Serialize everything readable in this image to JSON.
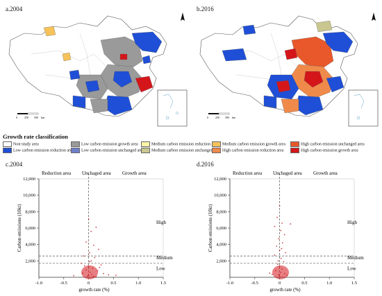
{
  "panels": {
    "a": "a.2004",
    "b": "b.2016",
    "c": "c.2004",
    "d": "d.2016"
  },
  "map": {
    "north_label": "N",
    "scale_a": [
      "0",
      "250",
      "500",
      "km"
    ],
    "scale_b": [
      "0",
      "250",
      "500",
      "km"
    ]
  },
  "legend": {
    "title": "Growth rate classification",
    "items": [
      {
        "label": "Non-study area",
        "color": "#ffffff"
      },
      {
        "label": "Low carbon emission reduction area",
        "color": "#1f4fd6"
      },
      {
        "label": "Low carbon emission growth area",
        "color": "#9a9a9a"
      },
      {
        "label": "Low carbon emission unchanged area",
        "color": "#6f7fc9"
      },
      {
        "label": "Medium carbon emission reduction area",
        "color": "#fbf3a8"
      },
      {
        "label": "Medium carbon emission unchanged area",
        "color": "#c9c78f"
      },
      {
        "label": "Medium carbon emission growth area",
        "color": "#f6c35a"
      },
      {
        "label": "High carbon emission reduction area",
        "color": "#f08a4b"
      },
      {
        "label": "High carbon emission unchanged area",
        "color": "#e8582a"
      },
      {
        "label": "High carbon emission growth area",
        "color": "#d4161b"
      }
    ]
  },
  "chart_data": [
    {
      "type": "scatter",
      "title": "c.2004",
      "xlabel": "growth rate (%)",
      "ylabel": "Carbon emissions (10kt)",
      "xlim": [
        -1.0,
        1.5
      ],
      "ylim": [
        0,
        12000
      ],
      "xticks": [
        "-1.0",
        "-0.5",
        "0",
        "0.5",
        "1.0",
        "1.5"
      ],
      "yticks": [
        "2,000",
        "4,000",
        "6,000",
        "8,000",
        "10,000",
        "12,000"
      ],
      "zones": [
        "Reduction area",
        "Unchaged area",
        "Growth area"
      ],
      "levels": [
        "High",
        "Medium",
        "Low"
      ],
      "thresholds_y": [
        1700,
        2600
      ],
      "threshold_x": [
        0
      ],
      "points": [
        [
          0.0,
          7100
        ],
        [
          0.15,
          6100
        ],
        [
          0.05,
          5600
        ],
        [
          -0.05,
          4300
        ],
        [
          0.1,
          3900
        ],
        [
          0.2,
          3400
        ],
        [
          0.02,
          3000
        ],
        [
          -0.1,
          2600
        ],
        [
          0.12,
          2400
        ],
        [
          0.05,
          2000
        ],
        [
          -0.15,
          1700
        ],
        [
          0.25,
          1500
        ],
        [
          0.0,
          1300
        ],
        [
          0.08,
          1100
        ],
        [
          -0.05,
          900
        ],
        [
          0.18,
          800
        ],
        [
          0.03,
          600
        ],
        [
          -0.12,
          500
        ],
        [
          0.3,
          450
        ],
        [
          0.06,
          350
        ],
        [
          0.0,
          250
        ],
        [
          -0.02,
          150
        ],
        [
          0.1,
          120
        ],
        [
          0.15,
          80
        ],
        [
          0.4,
          300
        ],
        [
          0.55,
          250
        ],
        [
          -0.3,
          200
        ],
        [
          0.02,
          1900
        ],
        [
          0.22,
          1200
        ],
        [
          -0.08,
          1400
        ]
      ]
    },
    {
      "type": "scatter",
      "title": "d.2016",
      "xlabel": "growth rate (%)",
      "ylabel": "Carbon emissions (10kt)",
      "xlim": [
        -1.0,
        1.5
      ],
      "ylim": [
        0,
        12000
      ],
      "xticks": [
        "-1.0",
        "-0.5",
        "0",
        "0.5",
        "1.0",
        "1.5"
      ],
      "yticks": [
        "2,000",
        "4,000",
        "6,000",
        "8,000",
        "10,000",
        "12,000"
      ],
      "zones": [
        "Reduction area",
        "Unchaged area",
        "Growth area"
      ],
      "levels": [
        "High",
        "Medium",
        "Low"
      ],
      "thresholds_y": [
        1700,
        2600
      ],
      "threshold_x": [
        0
      ],
      "points": [
        [
          0.0,
          8700
        ],
        [
          -0.05,
          7300
        ],
        [
          0.05,
          6600
        ],
        [
          -0.1,
          6200
        ],
        [
          0.02,
          5700
        ],
        [
          0.1,
          5200
        ],
        [
          -0.02,
          4700
        ],
        [
          0.06,
          4200
        ],
        [
          -0.06,
          3800
        ],
        [
          0.0,
          3300
        ],
        [
          0.12,
          3000
        ],
        [
          -0.1,
          2700
        ],
        [
          0.03,
          2300
        ],
        [
          0.08,
          1900
        ],
        [
          -0.04,
          1600
        ],
        [
          0.0,
          1300
        ],
        [
          0.05,
          1000
        ],
        [
          -0.08,
          800
        ],
        [
          0.02,
          600
        ],
        [
          0.1,
          450
        ],
        [
          -0.02,
          300
        ],
        [
          0.0,
          150
        ],
        [
          0.15,
          250
        ],
        [
          -0.15,
          350
        ],
        [
          0.22,
          6500
        ],
        [
          -0.2,
          500
        ],
        [
          0.04,
          3500
        ],
        [
          -0.03,
          2000
        ]
      ]
    }
  ]
}
